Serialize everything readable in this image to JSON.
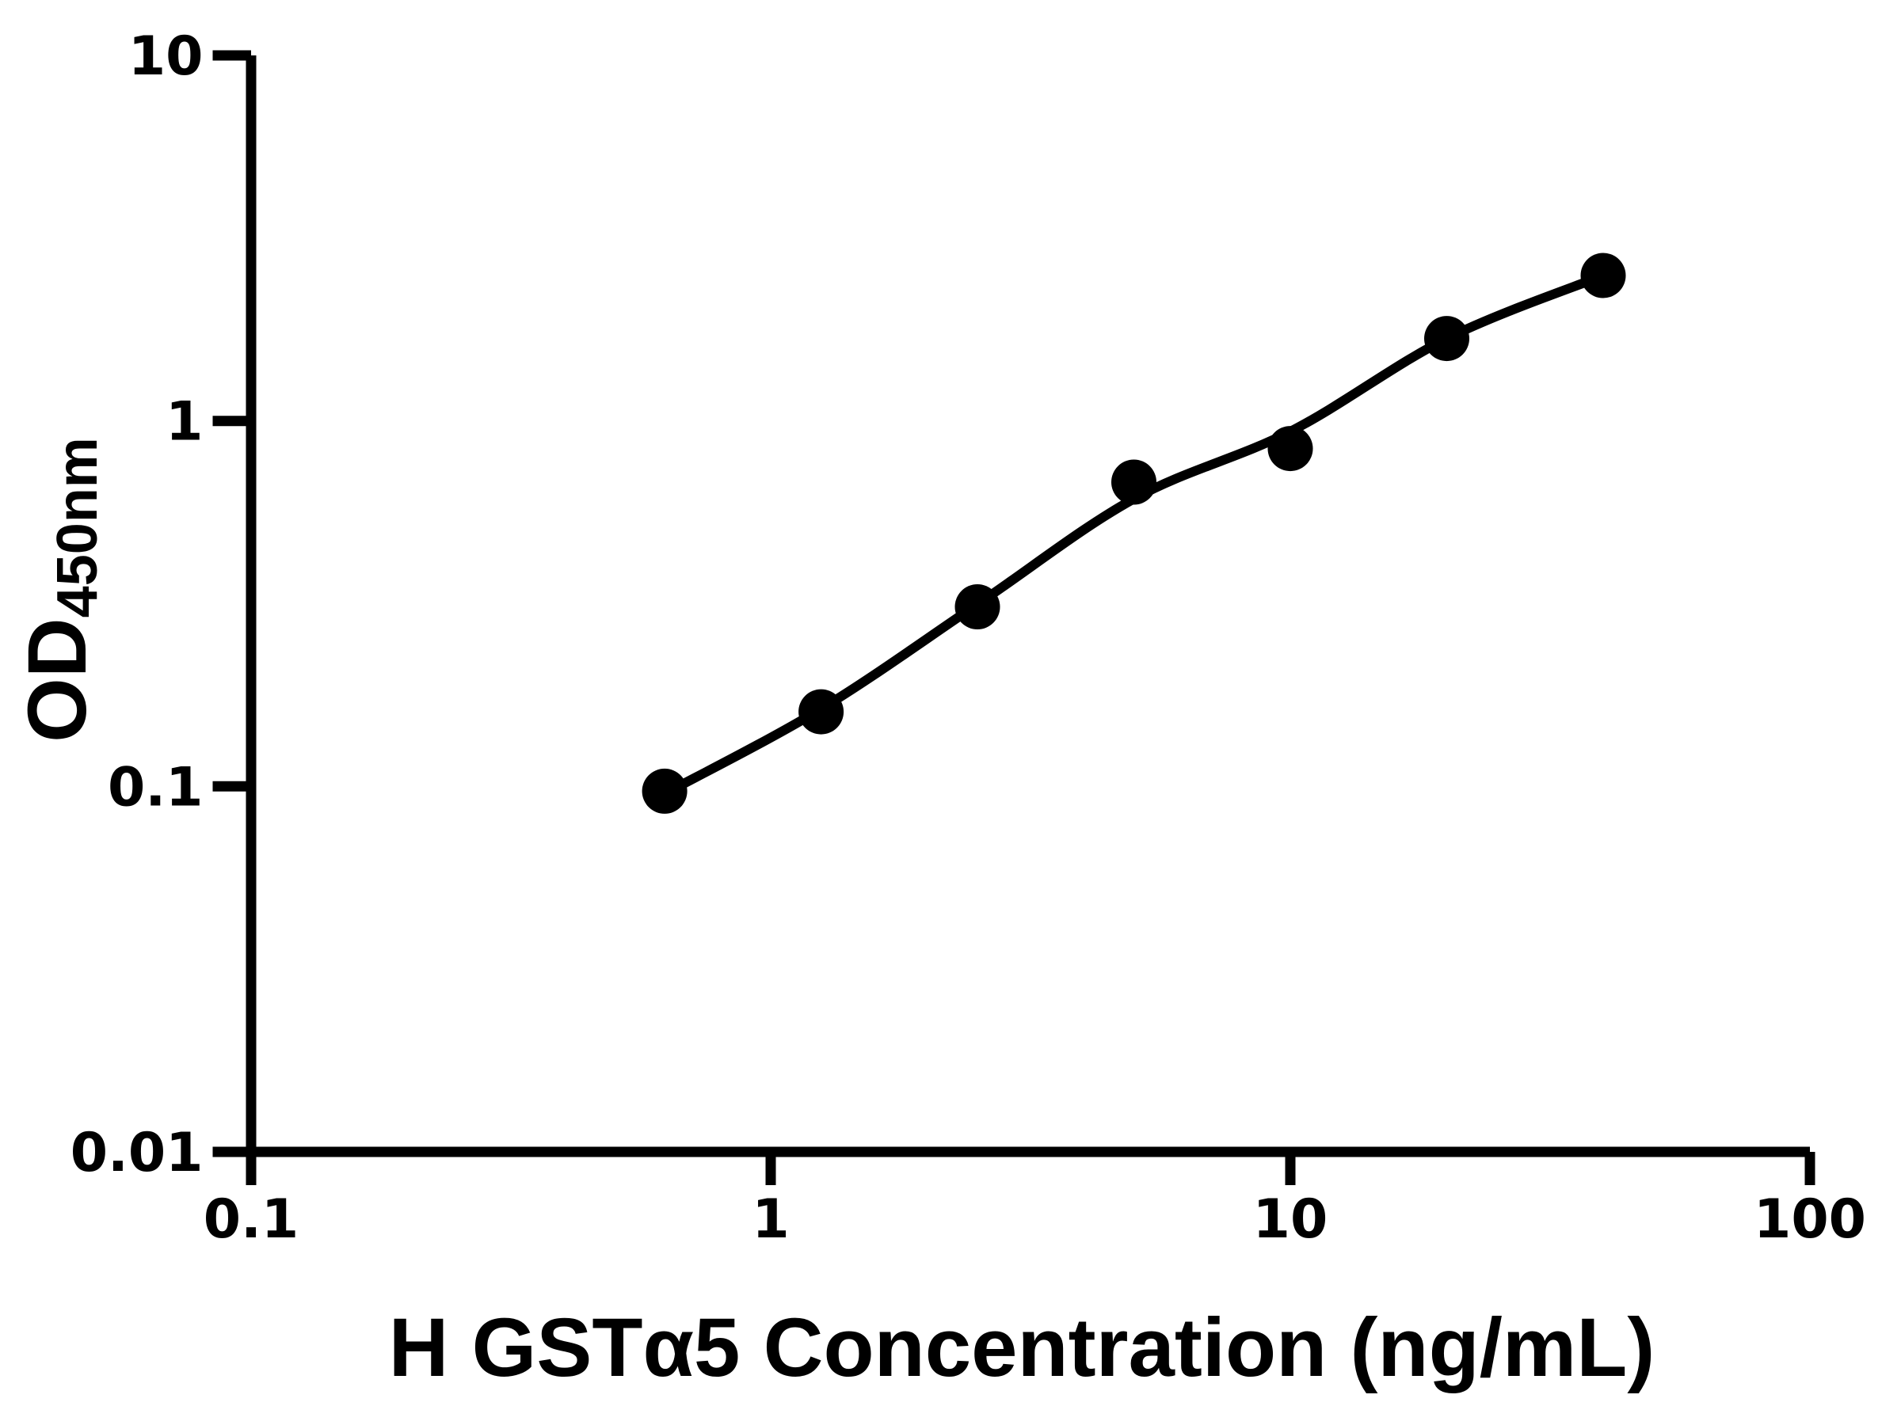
{
  "page": {
    "background": "#ffffff",
    "foreground": "#000000"
  },
  "chart_data": {
    "type": "scatter",
    "title": "",
    "xlabel": "H GSTα5 Concentration (ng/mL)",
    "ylabel": "OD450nm",
    "ylabel_main": "OD",
    "ylabel_sub": "450nm",
    "x_scale": "log10",
    "y_scale": "log10",
    "xlim": [
      0.1,
      100
    ],
    "ylim": [
      0.01,
      10
    ],
    "grid": false,
    "legend_position": "none",
    "x_ticks": [
      {
        "value": 0.1,
        "label": "0.1"
      },
      {
        "value": 1,
        "label": "1"
      },
      {
        "value": 10,
        "label": "10"
      },
      {
        "value": 100,
        "label": "100"
      }
    ],
    "y_ticks": [
      {
        "value": 0.01,
        "label": "0.01"
      },
      {
        "value": 0.1,
        "label": "0.1"
      },
      {
        "value": 1,
        "label": "1"
      },
      {
        "value": 10,
        "label": "10"
      }
    ],
    "series": [
      {
        "name": "standard-points",
        "marker": "filled-circle",
        "color": "#000000",
        "x": [
          0.625,
          1.25,
          2.5,
          5,
          10,
          20,
          40
        ],
        "y": [
          0.097,
          0.16,
          0.31,
          0.68,
          0.84,
          1.68,
          2.5
        ]
      }
    ],
    "fit_curve": {
      "name": "four-parameter-fit-line",
      "color": "#000000",
      "x": [
        0.625,
        1.25,
        2.5,
        5,
        10,
        20,
        40
      ],
      "y": [
        0.0955,
        0.163,
        0.315,
        0.612,
        0.935,
        1.68,
        2.5
      ]
    }
  }
}
